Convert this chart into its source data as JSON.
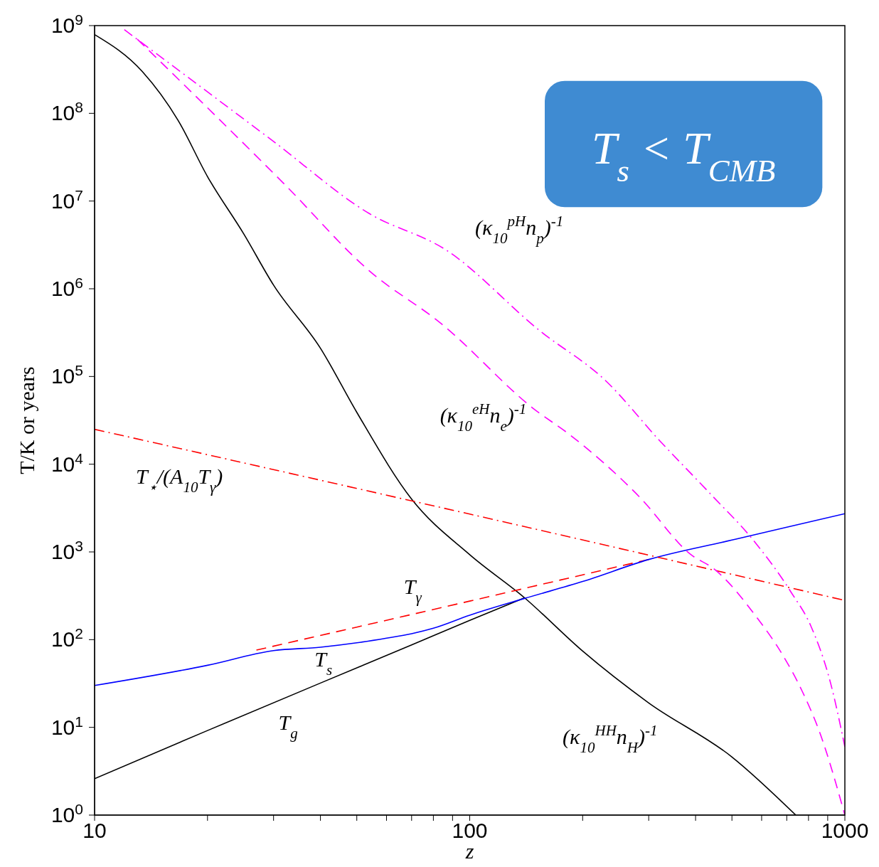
{
  "chart_data": {
    "type": "line",
    "log": "xy",
    "xlabel": "z",
    "ylabel": "T/K or years",
    "xlim": [
      10,
      1000
    ],
    "ylim": [
      1,
      1000000000
    ],
    "xticks": [
      10,
      {
        "value": 20,
        "label": null
      },
      {
        "value": 30,
        "label": null
      },
      {
        "value": 40,
        "label": null
      },
      {
        "value": 50,
        "label": null
      },
      {
        "value": 60,
        "label": null
      },
      {
        "value": 70,
        "label": null
      },
      {
        "value": 80,
        "label": null
      },
      {
        "value": 90,
        "label": null
      },
      100,
      {
        "value": 200,
        "label": null
      },
      {
        "value": 300,
        "label": null
      },
      {
        "value": 400,
        "label": null
      },
      {
        "value": 500,
        "label": null
      },
      {
        "value": 600,
        "label": null
      },
      {
        "value": 700,
        "label": null
      },
      {
        "value": 800,
        "label": null
      },
      {
        "value": 900,
        "label": null
      },
      1000
    ],
    "yticks": [
      {
        "value": 1,
        "label": "10$^{0}$"
      },
      {
        "value": 10,
        "label": "10$^{1}$"
      },
      {
        "value": 100,
        "label": "10$^{2}$"
      },
      {
        "value": 1000,
        "label": "10$^{3}$"
      },
      {
        "value": 10000,
        "label": "10$^{4}$"
      },
      {
        "value": 100000,
        "label": "10$^{5}$"
      },
      {
        "value": 1000000,
        "label": "10$^{6}$"
      },
      {
        "value": 10000000,
        "label": "10$^{7}$"
      },
      {
        "value": 100000000,
        "label": "10$^{8}$"
      },
      {
        "value": 1000000000,
        "label": "10$^{9}$"
      }
    ],
    "series": [
      {
        "color": "#000000",
        "line_style": "solid",
        "x": [
          10,
          13.4,
          16.7,
          20,
          25,
          30,
          40,
          50,
          70,
          100,
          140,
          200,
          300,
          500,
          740
        ],
        "values": [
          790000000,
          300000000,
          83000000,
          19000000,
          4200000,
          1100000,
          210000,
          39000,
          4000,
          930,
          300,
          74,
          19,
          4.6,
          1
        ]
      },
      {
        "color": "#000000",
        "line_style": "solid",
        "x": [
          10,
          20,
          40,
          70,
          100,
          140
        ],
        "values": [
          2.6,
          9.2,
          32,
          87,
          166,
          300
        ]
      },
      {
        "color": "#ff0000",
        "line_style": "dashed",
        "x": [
          27,
          50,
          100,
          200,
          300
        ],
        "values": [
          76,
          139,
          275,
          548,
          820
        ]
      },
      {
        "color": "#0000ff",
        "line_style": "solid",
        "x": [
          10,
          20,
          30,
          40,
          50,
          60,
          70,
          80,
          100,
          140,
          200,
          300,
          500,
          700,
          1000
        ],
        "values": [
          30,
          51,
          75,
          82,
          92,
          104,
          117,
          135,
          190,
          295,
          460,
          820,
          1365,
          1910,
          2728
        ]
      },
      {
        "color": "#ff0000",
        "line_style": "dashdot",
        "x": [
          10,
          100,
          1000
        ],
        "values": [
          25000,
          2700,
          280
        ]
      },
      {
        "color": "#ff00ff",
        "line_style": "dashdot",
        "x": [
          12,
          29.4,
          54,
          86.7,
          154,
          230,
          321,
          440,
          571,
          718,
          811,
          916,
          1000
        ],
        "values": [
          900000000,
          51000000,
          7200000,
          2750000,
          330000,
          90000,
          18500,
          4500,
          1350,
          350,
          144,
          32,
          6
        ]
      },
      {
        "color": "#ff00ff",
        "line_style": "dashed",
        "x": [
          13,
          20.7,
          32.1,
          54,
          84,
          149,
          184,
          284,
          389,
          448,
          582,
          681,
          769,
          855,
          1000
        ],
        "values": [
          700000000,
          100000000,
          15500000,
          1600000,
          400000,
          42000,
          22000,
          4200,
          930,
          640,
          180,
          68,
          26,
          9,
          1
        ]
      }
    ],
    "annotations": [
      "(κ$_{10}$$^{pH}$n$_{p}$)$^{-1}$",
      "(κ$_{10}$$^{eH}$n$_{e}$)$^{-1}$",
      "T$_{⋆}$/(A$_{10}$T$_{γ}$)",
      "T$_{γ}$",
      "T$_{s}$",
      "T$_{g}$",
      "(κ$_{10}$$^{HH}$n$_{H}$)$^{-1}$",
      "T$_{s}$ < T$_{CMB}$"
    ]
  }
}
